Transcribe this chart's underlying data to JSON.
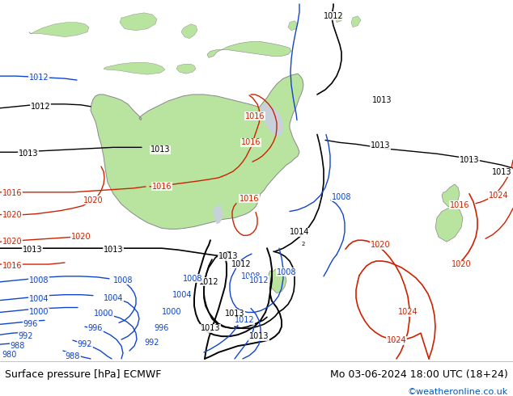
{
  "title_left": "Surface pressure [hPa] ECMWF",
  "title_right": "Mo 03-06-2024 18:00 UTC (18+24)",
  "copyright": "©weatheronline.co.uk",
  "ocean_color": "#c8d0dc",
  "land_color": "#b8e4a0",
  "land_edge": "#888888",
  "fig_width": 6.34,
  "fig_height": 4.9,
  "dpi": 100
}
